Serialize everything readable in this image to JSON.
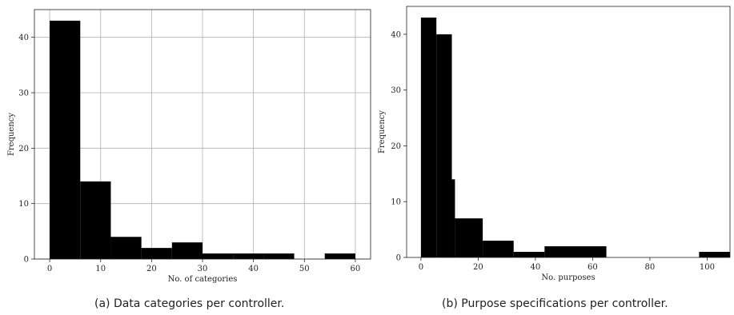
{
  "chart_data": [
    {
      "type": "bar",
      "subtype": "histogram",
      "bins": [
        {
          "start": 0,
          "end": 6,
          "count": 43
        },
        {
          "start": 6,
          "end": 12,
          "count": 14
        },
        {
          "start": 12,
          "end": 18,
          "count": 4
        },
        {
          "start": 18,
          "end": 24,
          "count": 2
        },
        {
          "start": 24,
          "end": 30,
          "count": 3
        },
        {
          "start": 30,
          "end": 36,
          "count": 1
        },
        {
          "start": 36,
          "end": 42,
          "count": 1
        },
        {
          "start": 42,
          "end": 48,
          "count": 1
        },
        {
          "start": 48,
          "end": 54,
          "count": 0
        },
        {
          "start": 54,
          "end": 60,
          "count": 1
        }
      ],
      "xlabel": "No. of categories",
      "ylabel": "Frequency",
      "xlim": [
        -3,
        63
      ],
      "ylim": [
        0,
        45
      ],
      "xticks": [
        0,
        10,
        20,
        30,
        40,
        50,
        60
      ],
      "yticks": [
        0,
        10,
        20,
        30,
        40
      ],
      "grid": true,
      "bar_color": "#000000",
      "caption": "(a) Data categories per controller."
    },
    {
      "type": "bar",
      "subtype": "histogram",
      "bins": [
        {
          "start": 0,
          "end": 5.4,
          "count": 43
        },
        {
          "start": 5.4,
          "end": 10.8,
          "count": 40
        },
        {
          "start": 10.8,
          "end": 11.9,
          "count": 14
        },
        {
          "start": 11.9,
          "end": 21.6,
          "count": 7
        },
        {
          "start": 21.6,
          "end": 32.4,
          "count": 3
        },
        {
          "start": 32.4,
          "end": 43.2,
          "count": 1
        },
        {
          "start": 43.2,
          "end": 64.8,
          "count": 2
        },
        {
          "start": 64.8,
          "end": 97.2,
          "count": 0
        },
        {
          "start": 97.2,
          "end": 108,
          "count": 1
        }
      ],
      "xlabel": "No. purposes",
      "ylabel": "Frequency",
      "xlim": [
        -5,
        108
      ],
      "ylim": [
        0,
        45
      ],
      "xticks": [
        0,
        20,
        40,
        60,
        80,
        100
      ],
      "yticks": [
        0,
        10,
        20,
        30,
        40
      ],
      "grid": false,
      "bar_color": "#000000",
      "caption": "(b) Purpose specifications per controller."
    }
  ]
}
